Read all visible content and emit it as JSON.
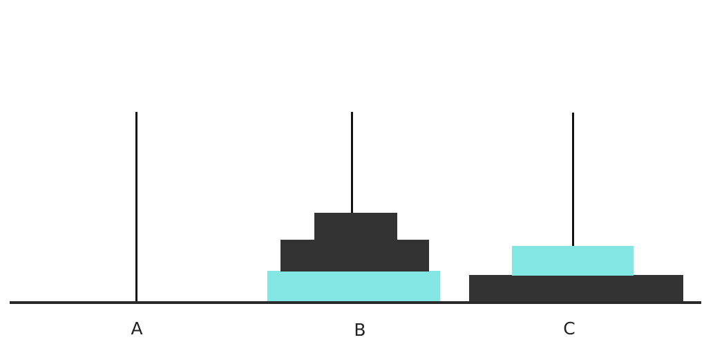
{
  "pegs": [
    {
      "label": "A"
    },
    {
      "label": "B"
    },
    {
      "label": "C"
    }
  ],
  "colors": {
    "dark_disk": "#333333",
    "highlight_disk": "#82e6e3",
    "peg": "#111111",
    "base": "#2a2a2a"
  },
  "disks": [
    {
      "peg": "B",
      "color": "highlight_disk"
    },
    {
      "peg": "B",
      "color": "dark_disk"
    },
    {
      "peg": "B",
      "color": "dark_disk"
    },
    {
      "peg": "C",
      "color": "dark_disk"
    },
    {
      "peg": "C",
      "color": "highlight_disk"
    }
  ]
}
